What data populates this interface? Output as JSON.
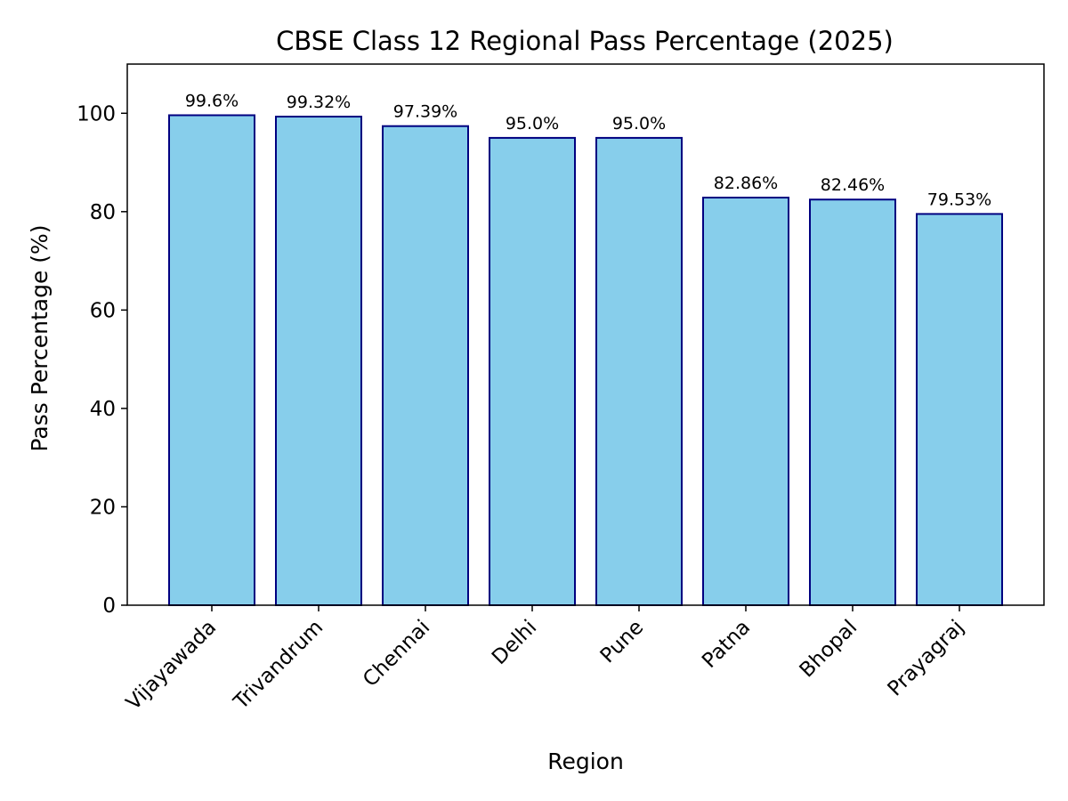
{
  "chart_data": {
    "type": "bar",
    "title": "CBSE Class 12 Regional Pass Percentage (2025)",
    "xlabel": "Region",
    "ylabel": "Pass Percentage (%)",
    "categories": [
      "Vijayawada",
      "Trivandrum",
      "Chennai",
      "Delhi",
      "Pune",
      "Patna",
      "Bhopal",
      "Prayagraj"
    ],
    "values": [
      99.6,
      99.32,
      97.39,
      95.0,
      95.0,
      82.86,
      82.46,
      79.53
    ],
    "data_labels": [
      "99.6%",
      "99.32%",
      "97.39%",
      "95.0%",
      "95.0%",
      "82.86%",
      "82.46%",
      "79.53%"
    ],
    "ylim": [
      0,
      110
    ],
    "yticks": [
      0,
      20,
      40,
      60,
      80,
      100
    ],
    "grid": false,
    "colors": {
      "bar_fill": "#87ceeb",
      "bar_edge": "#000080"
    }
  }
}
